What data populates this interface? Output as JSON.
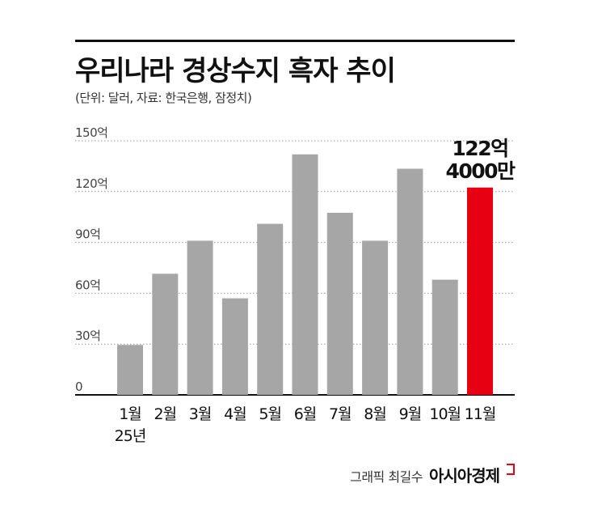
{
  "header": {
    "title": "우리나라 경상수지 흑자 추이",
    "subtitle": "(단위: 달러, 자료: 한국은행, 잠정치)"
  },
  "credit": {
    "label": "그래픽 최길수",
    "brand": "아시아경제"
  },
  "chart_data": {
    "type": "bar",
    "title": "우리나라 경상수지 흑자 추이",
    "unit": "달러",
    "categories": [
      "1월",
      "2월",
      "3월",
      "4월",
      "5월",
      "6월",
      "7월",
      "8월",
      "9월",
      "10월",
      "11월"
    ],
    "category_sublabels": {
      "0": "25년"
    },
    "values": [
      29.5,
      71.5,
      91,
      57,
      101,
      142,
      107.5,
      91,
      133.5,
      68,
      122.4
    ],
    "y_ticks": [
      0,
      30,
      60,
      90,
      120,
      150
    ],
    "y_tick_labels": [
      "0",
      "30억",
      "60억",
      "90억",
      "120억",
      "150억"
    ],
    "ylim": [
      0,
      150
    ],
    "grid": "horizontal dotted",
    "colors": {
      "default": "#a6a6a6",
      "highlight": "#e60012"
    },
    "highlight_index": 10,
    "annotation": {
      "index": 10,
      "lines": [
        "122억",
        "4000만"
      ]
    }
  }
}
